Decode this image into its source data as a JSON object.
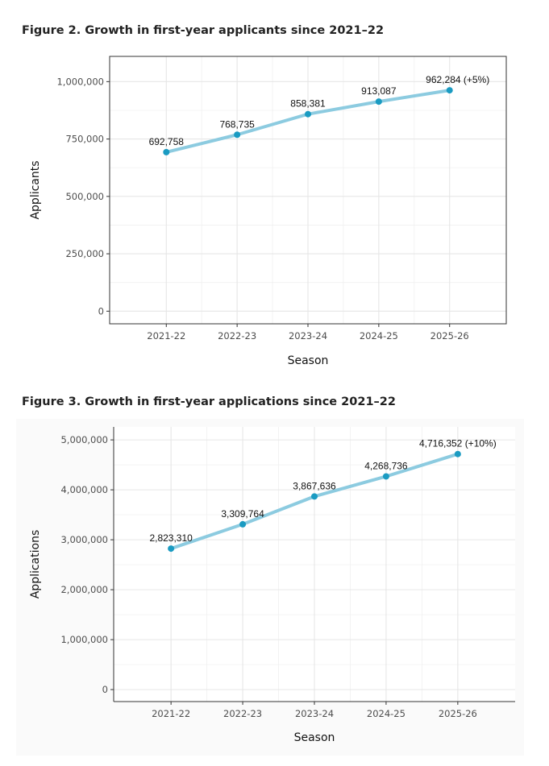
{
  "figures": [
    {
      "title": "Figure 2. Growth in first-year applicants since 2021–22"
    },
    {
      "title": "Figure 3. Growth in first-year applications since 2021–22"
    }
  ],
  "colors": {
    "line": "#8ccbe0",
    "point": "#1a9bc2",
    "grid": "#e6e6e6",
    "panel_border": "#333333",
    "bg_fig3": "#fafafa"
  },
  "chart_data": [
    {
      "type": "line",
      "title": "Figure 2. Growth in first-year applicants since 2021–22",
      "xlabel": "Season",
      "ylabel": "Applicants",
      "categories": [
        "2021-22",
        "2022-23",
        "2023-24",
        "2024-25",
        "2025-26"
      ],
      "values": [
        692758,
        768735,
        858381,
        913087,
        962284
      ],
      "data_labels": [
        "692,758",
        "768,735",
        "858,381",
        "913,087",
        "962,284 (+5%)"
      ],
      "yticks": [
        0,
        250000,
        500000,
        750000,
        1000000
      ],
      "ytick_labels": [
        "0",
        "250,000",
        "500,000",
        "750,000",
        "1,000,000"
      ],
      "ylim": [
        -55000,
        1110000
      ],
      "grid": true
    },
    {
      "type": "line",
      "title": "Figure 3. Growth in first-year applications since 2021–22",
      "xlabel": "Season",
      "ylabel": "Applications",
      "categories": [
        "2021-22",
        "2022-23",
        "2023-24",
        "2024-25",
        "2025-26"
      ],
      "values": [
        2823310,
        3309764,
        3867636,
        4268736,
        4716352
      ],
      "data_labels": [
        "2,823,310",
        "3,309,764",
        "3,867,636",
        "4,268,736",
        "4,716,352 (+10%)"
      ],
      "yticks": [
        0,
        1000000,
        2000000,
        3000000,
        4000000,
        5000000
      ],
      "ytick_labels": [
        "0",
        "1,000,000",
        "2,000,000",
        "3,000,000",
        "4,000,000",
        "5,000,000"
      ],
      "ylim": [
        -240000,
        5260000
      ],
      "grid": true
    }
  ]
}
